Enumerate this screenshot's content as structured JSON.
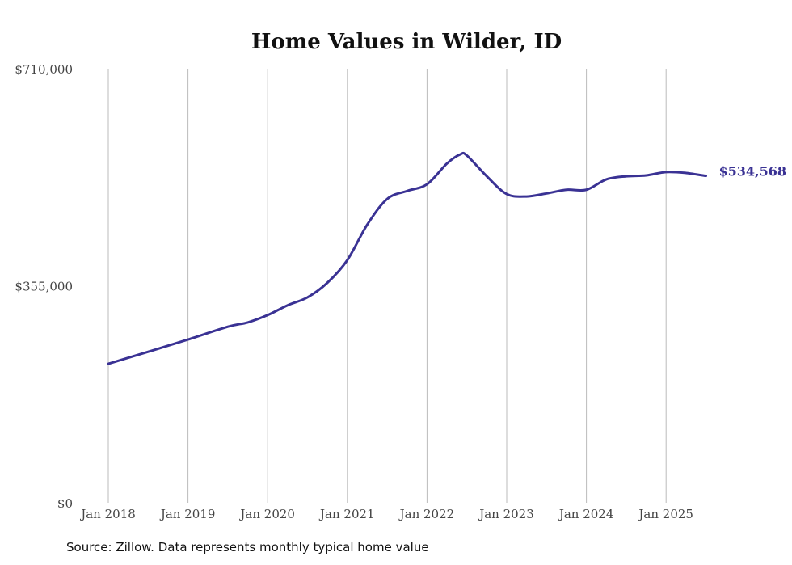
{
  "chart_data": {
    "type": "line",
    "title": "Home Values in Wilder, ID",
    "xlabel": "",
    "ylabel": "",
    "ylim": [
      0,
      710000
    ],
    "xlim": [
      2018.0,
      2025.5
    ],
    "y_ticks": [
      {
        "value": 0,
        "label": "$0"
      },
      {
        "value": 355000,
        "label": "$355,000"
      },
      {
        "value": 710000,
        "label": "$710,000"
      }
    ],
    "x_ticks": [
      {
        "value": 2018,
        "label": "Jan 2018"
      },
      {
        "value": 2019,
        "label": "Jan 2019"
      },
      {
        "value": 2020,
        "label": "Jan 2020"
      },
      {
        "value": 2021,
        "label": "Jan 2021"
      },
      {
        "value": 2022,
        "label": "Jan 2022"
      },
      {
        "value": 2023,
        "label": "Jan 2023"
      },
      {
        "value": 2024,
        "label": "Jan 2024"
      },
      {
        "value": 2025,
        "label": "Jan 2025"
      }
    ],
    "grid": "vertical",
    "series": [
      {
        "name": "Typical home value",
        "color": "#3a3294",
        "x": [
          2018.0,
          2018.5,
          2019.0,
          2019.5,
          2019.75,
          2020.0,
          2020.25,
          2020.5,
          2020.75,
          2021.0,
          2021.25,
          2021.5,
          2021.75,
          2022.0,
          2022.25,
          2022.42,
          2022.5,
          2022.75,
          2023.0,
          2023.25,
          2023.5,
          2023.75,
          2024.0,
          2024.25,
          2024.5,
          2024.75,
          2025.0,
          2025.25,
          2025.5
        ],
        "values": [
          227400,
          247000,
          267000,
          288000,
          295000,
          307000,
          323000,
          336000,
          360000,
          397000,
          455000,
          497000,
          510000,
          521000,
          555000,
          570000,
          568000,
          534000,
          505000,
          501000,
          506000,
          512000,
          512000,
          529000,
          534000,
          535500,
          541000,
          539500,
          534568
        ]
      }
    ],
    "end_label": "$534,568",
    "source": "Source: Zillow. Data represents monthly typical home value"
  }
}
